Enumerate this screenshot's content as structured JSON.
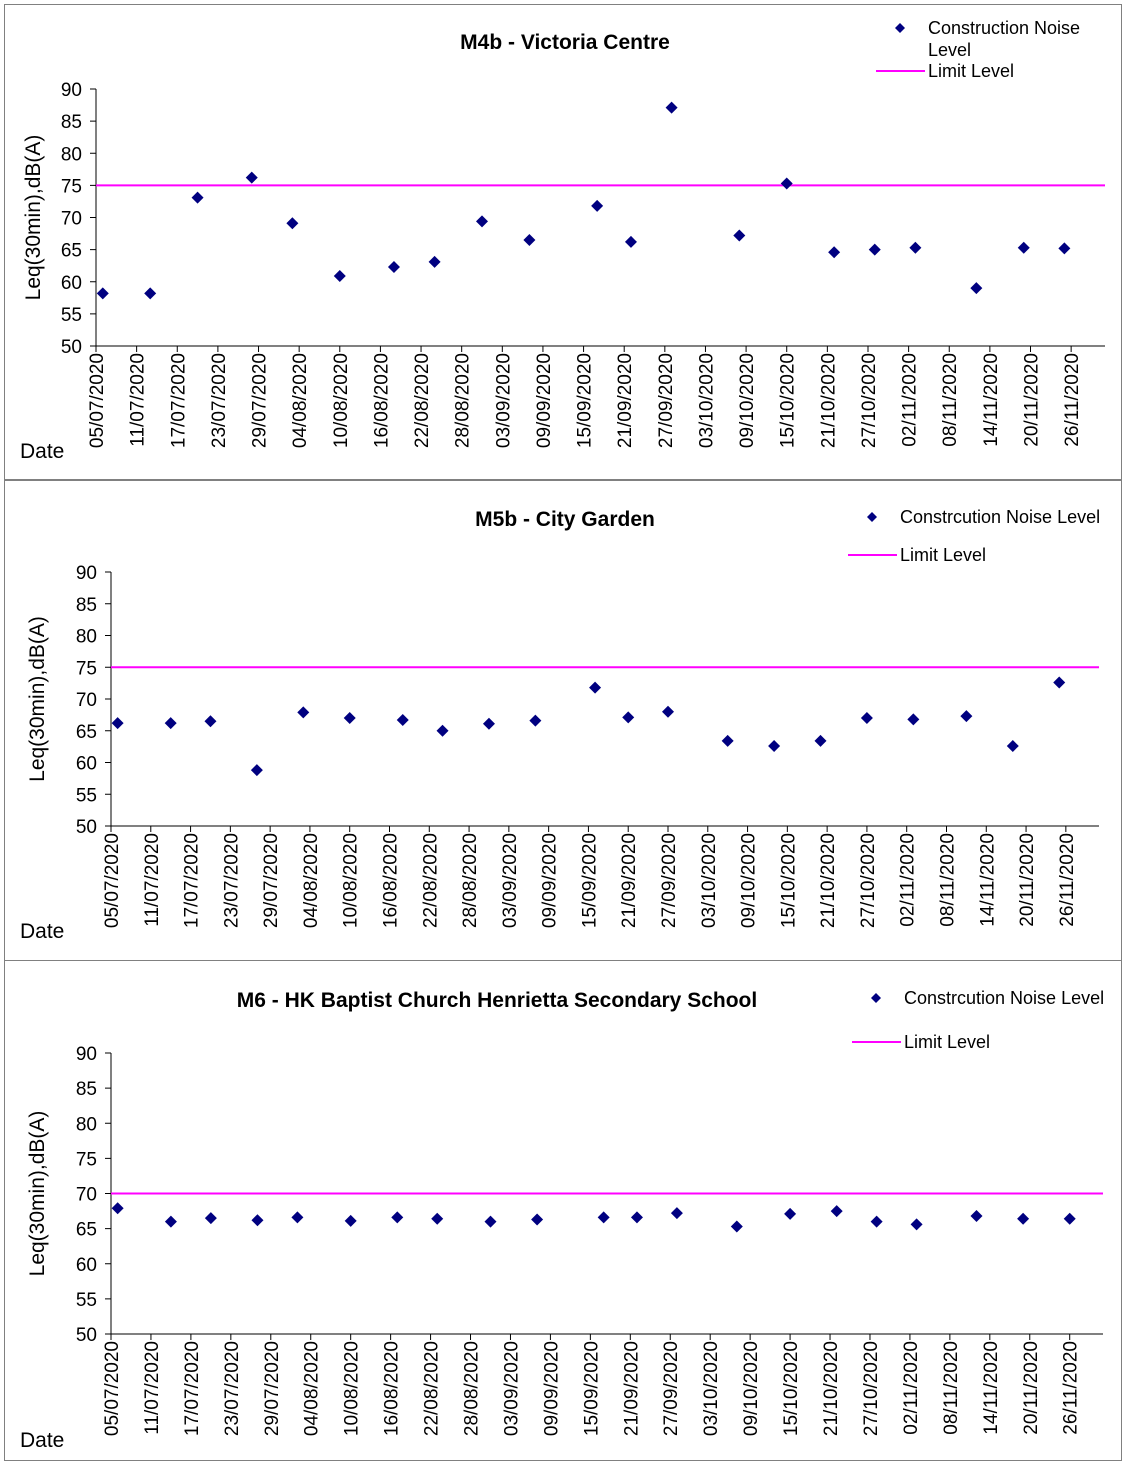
{
  "chart_data": [
    {
      "type": "scatter",
      "title": "M4b - Victoria Centre",
      "ylabel": "Leq(30min),dB(A)",
      "xlabel": "Date",
      "ylim": [
        50,
        90
      ],
      "yticks": [
        50,
        55,
        60,
        65,
        70,
        75,
        80,
        85,
        90
      ],
      "xlim": [
        "05/07/2020",
        "01/12/2020"
      ],
      "xtick_labels": [
        "05/07/2020",
        "11/07/2020",
        "17/07/2020",
        "23/07/2020",
        "29/07/2020",
        "04/08/2020",
        "10/08/2020",
        "16/08/2020",
        "22/08/2020",
        "28/08/2020",
        "03/09/2020",
        "09/09/2020",
        "15/09/2020",
        "21/09/2020",
        "27/09/2020",
        "03/10/2020",
        "09/10/2020",
        "15/10/2020",
        "21/10/2020",
        "27/10/2020",
        "02/11/2020",
        "08/11/2020",
        "14/11/2020",
        "20/11/2020",
        "26/11/2020"
      ],
      "legend": "top-right",
      "grid": false,
      "series": [
        {
          "name": "Construction Noise Level",
          "name_lines": [
            "Construction Noise",
            "Level"
          ],
          "marker": "diamond",
          "color": "#000080",
          "x": [
            "06/07/2020",
            "13/07/2020",
            "20/07/2020",
            "28/07/2020",
            "03/08/2020",
            "10/08/2020",
            "18/08/2020",
            "24/08/2020",
            "31/08/2020",
            "07/09/2020",
            "17/09/2020",
            "22/09/2020",
            "28/09/2020",
            "08/10/2020",
            "15/10/2020",
            "22/10/2020",
            "28/10/2020",
            "03/11/2020",
            "12/11/2020",
            "19/11/2020",
            "25/11/2020"
          ],
          "y": [
            58.2,
            58.2,
            73.1,
            76.2,
            69.1,
            60.9,
            62.3,
            63.1,
            69.4,
            66.5,
            71.8,
            66.2,
            87.1,
            67.2,
            75.3,
            64.6,
            65.0,
            65.3,
            59.0,
            65.3,
            65.2
          ]
        },
        {
          "name": "Limit Level",
          "type": "line",
          "color": "#FF00FF",
          "value": 75
        }
      ]
    },
    {
      "type": "scatter",
      "title": "M5b - City Garden",
      "ylabel": "Leq(30min),dB(A)",
      "xlabel": "Date",
      "ylim": [
        50,
        90
      ],
      "yticks": [
        50,
        55,
        60,
        65,
        70,
        75,
        80,
        85,
        90
      ],
      "xlim": [
        "05/07/2020",
        "01/12/2020"
      ],
      "xtick_labels": [
        "05/07/2020",
        "11/07/2020",
        "17/07/2020",
        "23/07/2020",
        "29/07/2020",
        "04/08/2020",
        "10/08/2020",
        "16/08/2020",
        "22/08/2020",
        "28/08/2020",
        "03/09/2020",
        "09/09/2020",
        "15/09/2020",
        "21/09/2020",
        "27/09/2020",
        "03/10/2020",
        "09/10/2020",
        "15/10/2020",
        "21/10/2020",
        "27/10/2020",
        "02/11/2020",
        "08/11/2020",
        "14/11/2020",
        "20/11/2020",
        "26/11/2020"
      ],
      "legend": "top-right",
      "grid": false,
      "series": [
        {
          "name": "Constrcution Noise Level",
          "marker": "diamond",
          "color": "#000080",
          "x": [
            "06/07/2020",
            "14/07/2020",
            "20/07/2020",
            "27/07/2020",
            "03/08/2020",
            "10/08/2020",
            "18/08/2020",
            "24/08/2020",
            "31/08/2020",
            "07/09/2020",
            "16/09/2020",
            "21/09/2020",
            "27/09/2020",
            "06/10/2020",
            "13/10/2020",
            "20/10/2020",
            "27/10/2020",
            "03/11/2020",
            "11/11/2020",
            "18/11/2020",
            "25/11/2020"
          ],
          "y": [
            66.2,
            66.2,
            66.5,
            58.8,
            67.9,
            67.0,
            66.7,
            65.0,
            66.1,
            66.6,
            71.8,
            67.1,
            68.0,
            63.4,
            62.6,
            63.4,
            67.0,
            66.8,
            67.3,
            62.6,
            72.6
          ]
        },
        {
          "name": "Limit Level",
          "type": "line",
          "color": "#FF00FF",
          "value": 75
        }
      ]
    },
    {
      "type": "scatter",
      "title": "M6 - HK Baptist Church Henrietta Secondary School",
      "ylabel": "Leq(30min),dB(A)",
      "xlabel": "Date",
      "ylim": [
        50,
        90
      ],
      "yticks": [
        50,
        55,
        60,
        65,
        70,
        75,
        80,
        85,
        90
      ],
      "xlim": [
        "05/07/2020",
        "01/12/2020"
      ],
      "xtick_labels": [
        "05/07/2020",
        "11/07/2020",
        "17/07/2020",
        "23/07/2020",
        "29/07/2020",
        "04/08/2020",
        "10/08/2020",
        "16/08/2020",
        "22/08/2020",
        "28/08/2020",
        "03/09/2020",
        "09/09/2020",
        "15/09/2020",
        "21/09/2020",
        "27/09/2020",
        "03/10/2020",
        "09/10/2020",
        "15/10/2020",
        "21/10/2020",
        "27/10/2020",
        "02/11/2020",
        "08/11/2020",
        "14/11/2020",
        "20/11/2020",
        "26/11/2020"
      ],
      "legend": "top-right",
      "grid": false,
      "series": [
        {
          "name": "Constrcution Noise Level",
          "marker": "diamond",
          "color": "#000080",
          "x": [
            "06/07/2020",
            "14/07/2020",
            "20/07/2020",
            "27/07/2020",
            "02/08/2020",
            "10/08/2020",
            "17/08/2020",
            "23/08/2020",
            "31/08/2020",
            "07/09/2020",
            "17/09/2020",
            "22/09/2020",
            "28/09/2020",
            "07/10/2020",
            "15/10/2020",
            "22/10/2020",
            "28/10/2020",
            "03/11/2020",
            "12/11/2020",
            "19/11/2020",
            "26/11/2020"
          ],
          "y": [
            67.9,
            66.0,
            66.5,
            66.2,
            66.6,
            66.1,
            66.6,
            66.4,
            66.0,
            66.3,
            66.6,
            66.6,
            67.2,
            65.3,
            67.1,
            67.5,
            66.0,
            65.6,
            66.8,
            66.4,
            66.4
          ]
        },
        {
          "name": "Limit Level",
          "type": "line",
          "color": "#FF00FF",
          "value": 70
        }
      ]
    }
  ]
}
